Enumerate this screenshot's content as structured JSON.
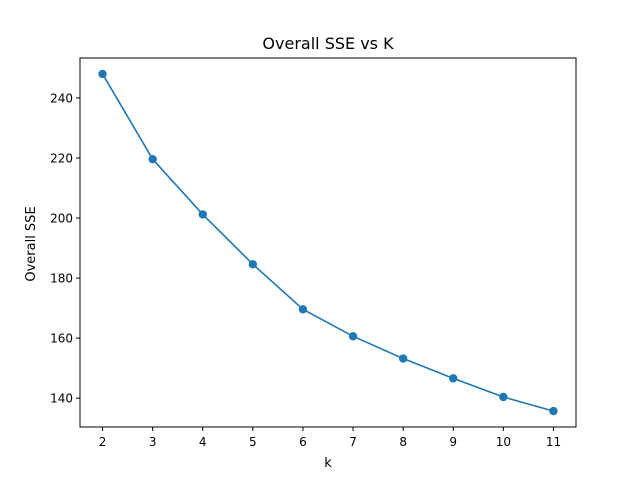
{
  "chart_data": {
    "type": "line",
    "title": "Overall SSE vs K",
    "xlabel": "k",
    "ylabel": "Overall SSE",
    "x": [
      2,
      3,
      4,
      5,
      6,
      7,
      8,
      9,
      10,
      11
    ],
    "series": [
      {
        "values": [
          248.0,
          219.6,
          201.2,
          184.6,
          169.6,
          160.6,
          153.2,
          146.6,
          140.4,
          135.7
        ],
        "color": "#1f77b4",
        "marker": "circle"
      }
    ],
    "xlim": [
      1.55,
      11.45
    ],
    "ylim": [
      130.4,
      253.3
    ],
    "xticks": [
      2,
      3,
      4,
      5,
      6,
      7,
      8,
      9,
      10,
      11
    ],
    "yticks": [
      140,
      160,
      180,
      200,
      220,
      240
    ],
    "grid": false,
    "legend": "none"
  }
}
